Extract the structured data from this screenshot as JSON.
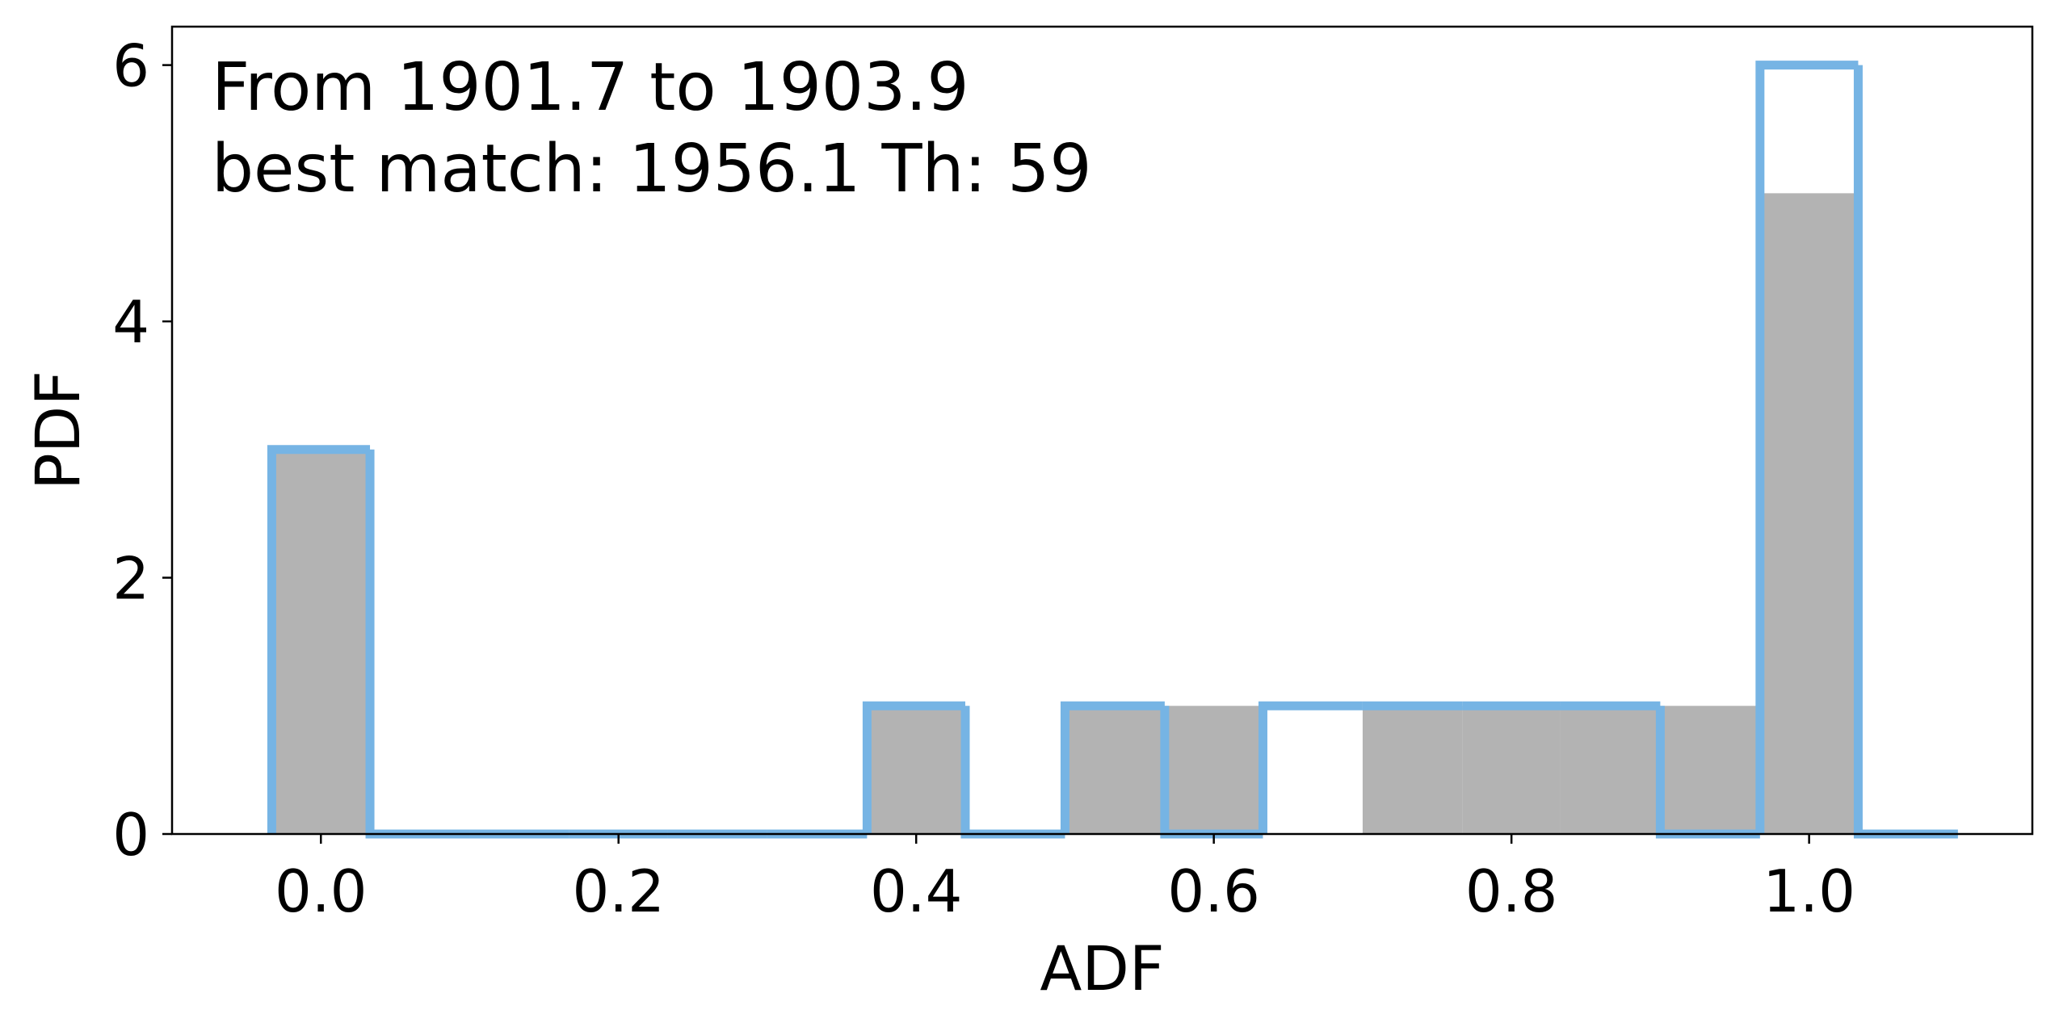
{
  "chart_data": {
    "type": "bar",
    "xlabel": "ADF",
    "ylabel": "PDF",
    "xlim": [
      -0.1,
      1.15
    ],
    "ylim": [
      0,
      6.3
    ],
    "x_ticks": [
      {
        "value": 0.0,
        "label": "0.0"
      },
      {
        "value": 0.2,
        "label": "0.2"
      },
      {
        "value": 0.4,
        "label": "0.4"
      },
      {
        "value": 0.6,
        "label": "0.6"
      },
      {
        "value": 0.8,
        "label": "0.8"
      },
      {
        "value": 1.0,
        "label": "1.0"
      }
    ],
    "y_ticks": [
      {
        "value": 0,
        "label": "0"
      },
      {
        "value": 2,
        "label": "2"
      },
      {
        "value": 4,
        "label": "4"
      },
      {
        "value": 6,
        "label": "6"
      }
    ],
    "annotation_lines": [
      "From 1901.7 to 1903.9",
      "best match: 1956.1  Th: 59"
    ],
    "colors": {
      "filled": "#b3b3b3",
      "step": "#76b4e4",
      "axes": "#000000"
    },
    "series": [
      {
        "style": "filled-bars",
        "bins": [
          {
            "x0": -0.033,
            "x1": 0.033,
            "value": 3
          },
          {
            "x0": 0.367,
            "x1": 0.433,
            "value": 1
          },
          {
            "x0": 0.5,
            "x1": 0.567,
            "value": 1
          },
          {
            "x0": 0.567,
            "x1": 0.633,
            "value": 1
          },
          {
            "x0": 0.7,
            "x1": 0.767,
            "value": 1
          },
          {
            "x0": 0.767,
            "x1": 0.833,
            "value": 1
          },
          {
            "x0": 0.833,
            "x1": 0.9,
            "value": 1
          },
          {
            "x0": 0.9,
            "x1": 0.967,
            "value": 1
          },
          {
            "x0": 0.967,
            "x1": 1.033,
            "value": 5
          }
        ]
      },
      {
        "style": "step-outline",
        "edges": [
          -0.033,
          0.033,
          0.1,
          0.167,
          0.233,
          0.3,
          0.367,
          0.433,
          0.5,
          0.567,
          0.633,
          0.7,
          0.767,
          0.833,
          0.9,
          0.967,
          1.033,
          1.1
        ],
        "values": [
          3,
          0,
          0,
          0,
          0,
          0,
          1,
          0,
          1,
          0,
          1,
          1,
          1,
          1,
          0,
          6,
          0
        ]
      }
    ]
  }
}
